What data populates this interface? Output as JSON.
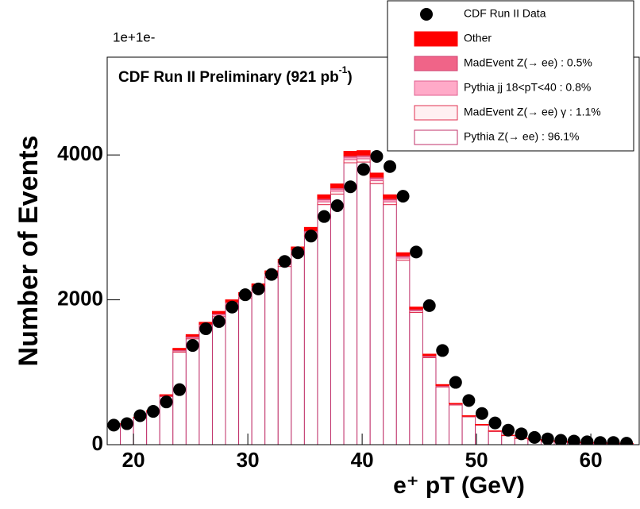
{
  "chart_data": {
    "type": "histogram",
    "corner_text": "1e+1e-",
    "title": "CDF Run II Preliminary (921 pb",
    "title_sup": "-1",
    "title_end": ")",
    "xlabel": "e⁺ pT (GeV)",
    "ylabel": "Number of Events",
    "xlim": [
      17.7,
      64.3
    ],
    "ylim": [
      0,
      5350
    ],
    "xticks": [
      20,
      30,
      40,
      50,
      60
    ],
    "yticks": [
      0,
      2000,
      4000
    ],
    "legend": "top-right",
    "bins": [
      17.7,
      18.85,
      20,
      21.15,
      22.3,
      23.45,
      24.6,
      25.75,
      26.9,
      28.05,
      29.2,
      30.35,
      31.5,
      32.65,
      33.8,
      34.95,
      36.1,
      37.25,
      38.4,
      39.55,
      40.7,
      41.85,
      43,
      44.15,
      45.3,
      46.45,
      47.6,
      48.75,
      49.9,
      51.05,
      52.2,
      53.35,
      54.5,
      55.65,
      56.8,
      57.95,
      59.1,
      60.25,
      61.4,
      62.55,
      63.7
    ],
    "data": {
      "name": "CDF Run II Data",
      "color": "#000000",
      "values": [
        270,
        290,
        400,
        460,
        590,
        760,
        1370,
        1600,
        1700,
        1900,
        2070,
        2150,
        2350,
        2530,
        2650,
        2880,
        3150,
        3300,
        3560,
        3800,
        3980,
        3840,
        3430,
        2660,
        1920,
        1300,
        860,
        610,
        430,
        300,
        200,
        150,
        100,
        80,
        60,
        50,
        40,
        30,
        30,
        20
      ]
    },
    "series": [
      {
        "name": "Pythia Z(→ ee) : 96.1%",
        "color": "#ffffff",
        "edge": "#c0306a",
        "values": [
          250,
          279,
          365,
          452,
          663,
          1278,
          1461,
          1624,
          1768,
          1922,
          2018,
          2133,
          2306,
          2460,
          2624,
          2883,
          3315,
          3460,
          3892,
          3902,
          3604,
          3315,
          2547,
          1826,
          1201,
          798,
          548,
          384,
          269,
          183,
          125,
          86,
          67,
          53,
          43,
          34,
          29,
          24,
          19,
          17
        ]
      },
      {
        "name": "MadEvent Z(→ ee) γ : 1.1%",
        "color": "#fff0f2",
        "edge": "#e03050",
        "values": [
          3,
          3,
          4,
          5,
          8,
          15,
          17,
          19,
          20,
          22,
          23,
          24,
          26,
          28,
          30,
          33,
          38,
          40,
          45,
          45,
          41,
          38,
          29,
          21,
          14,
          9,
          6,
          4,
          3,
          2,
          1,
          1,
          1,
          1,
          1,
          0,
          0,
          0,
          0,
          0
        ]
      },
      {
        "name": "Pythia jj 18<pT<40 : 0.8%",
        "color": "#ffaac8",
        "edge": "#e06090",
        "values": [
          2,
          2,
          3,
          4,
          6,
          11,
          12,
          14,
          15,
          16,
          17,
          18,
          19,
          20,
          22,
          24,
          28,
          29,
          32,
          32,
          30,
          28,
          21,
          15,
          10,
          7,
          5,
          3,
          2,
          2,
          1,
          1,
          1,
          0,
          0,
          0,
          0,
          0,
          0,
          0
        ]
      },
      {
        "name": "MadEvent Z(→ ee) : 0.5%",
        "color": "#f06488",
        "edge": "#d04070",
        "values": [
          1,
          1,
          2,
          2,
          3,
          7,
          8,
          8,
          9,
          10,
          11,
          11,
          12,
          13,
          14,
          15,
          17,
          18,
          20,
          20,
          19,
          17,
          13,
          10,
          6,
          4,
          3,
          2,
          1,
          1,
          1,
          1,
          0,
          0,
          0,
          0,
          0,
          0,
          0,
          0
        ]
      },
      {
        "name": "Other",
        "color": "#ff0000",
        "edge": "#ff0000",
        "values": [
          4,
          5,
          6,
          7,
          10,
          19,
          22,
          25,
          28,
          30,
          31,
          34,
          37,
          39,
          40,
          45,
          52,
          53,
          61,
          61,
          56,
          52,
          40,
          28,
          19,
          12,
          8,
          7,
          5,
          2,
          2,
          1,
          1,
          1,
          1,
          1,
          1,
          1,
          1,
          1
        ]
      }
    ]
  }
}
